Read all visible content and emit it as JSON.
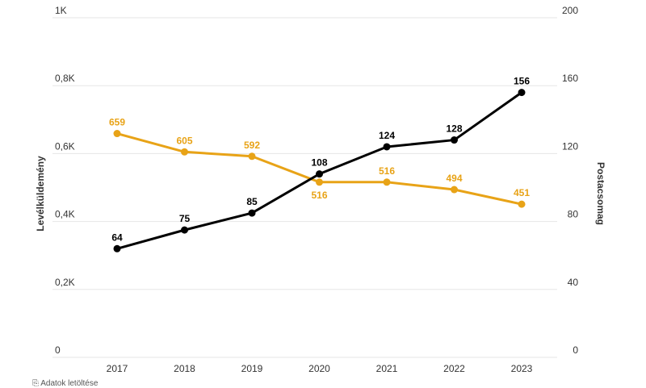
{
  "chart_data": {
    "type": "line",
    "categories": [
      "2017",
      "2018",
      "2019",
      "2020",
      "2021",
      "2022",
      "2023"
    ],
    "series": [
      {
        "name": "Levélküldemény",
        "axis": "left",
        "color": "#e8a317",
        "values": [
          659,
          605,
          592,
          516,
          516,
          494,
          451
        ],
        "labels": [
          "659",
          "605",
          "592",
          "516",
          "516",
          "494",
          "451"
        ]
      },
      {
        "name": "Postacsomag",
        "axis": "right",
        "color": "#000000",
        "values": [
          64,
          75,
          85,
          108,
          124,
          128,
          156
        ],
        "labels": [
          "64",
          "75",
          "85",
          "108",
          "124",
          "128",
          "156"
        ]
      }
    ],
    "yleft": {
      "label": "Levélküldemény",
      "ylim": [
        0,
        1000
      ],
      "ticks": [
        0,
        200,
        400,
        600,
        800,
        1000
      ],
      "tick_labels": [
        "0",
        "0,2K",
        "0,4K",
        "0,6K",
        "0,8K",
        "1K"
      ]
    },
    "yright": {
      "label": "Postacsomag",
      "ylim": [
        0,
        200
      ],
      "ticks": [
        0,
        40,
        80,
        120,
        160,
        200
      ],
      "tick_labels": [
        "0",
        "40",
        "80",
        "120",
        "160",
        "200"
      ]
    },
    "grid": true
  },
  "footer": {
    "icon": "clipboard-icon",
    "text": "Adatok letöltése"
  }
}
